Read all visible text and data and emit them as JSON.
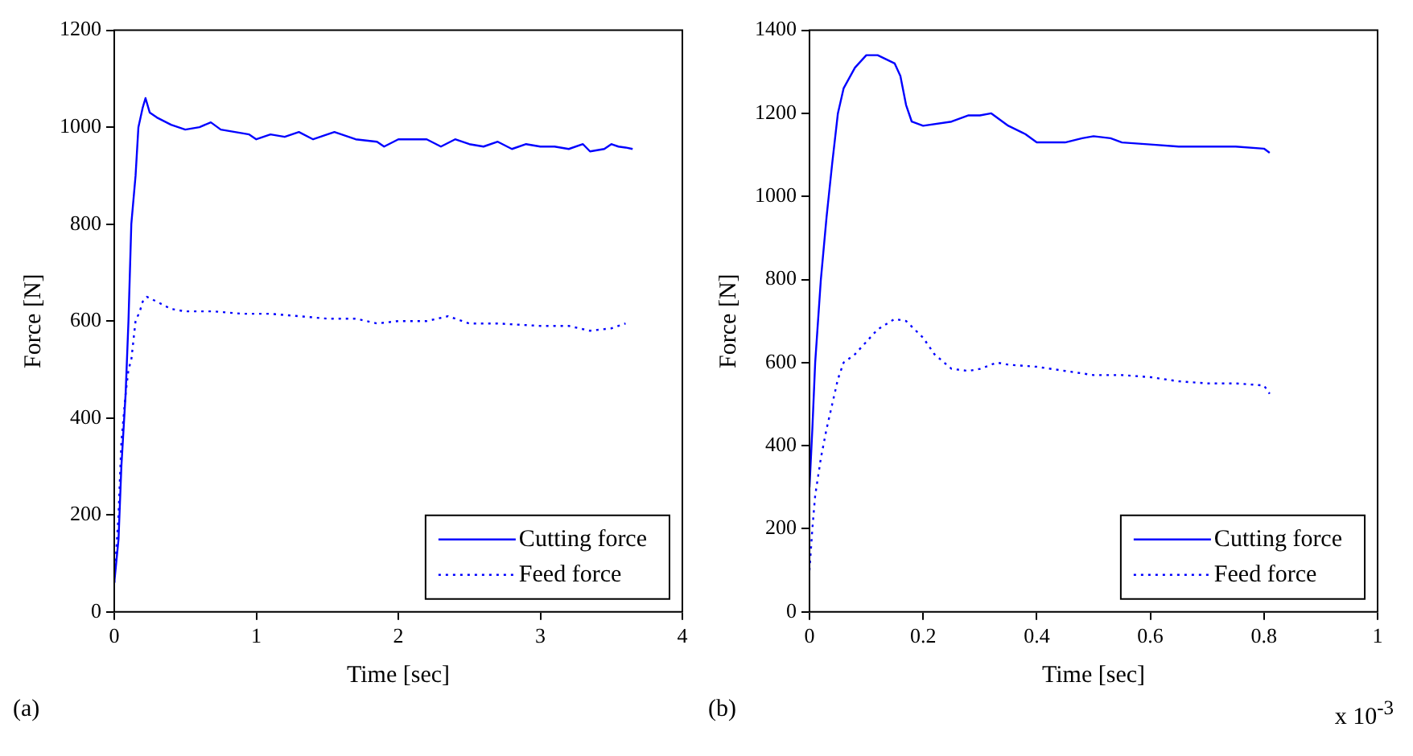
{
  "chart_data": [
    {
      "type": "line",
      "xlabel": "Time [sec]",
      "ylabel": "Force [N]",
      "xlim": [
        0,
        4
      ],
      "xticks": [
        0,
        1,
        2,
        3,
        4
      ],
      "ylim": [
        0,
        1200
      ],
      "yticks": [
        0,
        200,
        400,
        600,
        800,
        1000,
        1200
      ],
      "grid": false,
      "legend": "bottom right",
      "marker": "none",
      "annotations": [
        "(a)"
      ],
      "series": [
        {
          "name": "Cutting force",
          "color": "#0000ff",
          "line_style": "solid",
          "x": [
            0,
            0.03,
            0.05,
            0.08,
            0.1,
            0.12,
            0.15,
            0.17,
            0.2,
            0.22,
            0.25,
            0.3,
            0.4,
            0.5,
            0.6,
            0.68,
            0.75,
            0.85,
            0.95,
            1.0,
            1.1,
            1.2,
            1.3,
            1.4,
            1.5,
            1.55,
            1.7,
            1.85,
            1.9,
            2.0,
            2.2,
            2.3,
            2.4,
            2.5,
            2.6,
            2.7,
            2.8,
            2.9,
            3.0,
            3.1,
            3.2,
            3.3,
            3.35,
            3.45,
            3.5,
            3.55,
            3.6,
            3.65
          ],
          "values": [
            60,
            150,
            300,
            450,
            600,
            800,
            900,
            1000,
            1040,
            1060,
            1030,
            1020,
            1005,
            995,
            1000,
            1010,
            995,
            990,
            985,
            975,
            985,
            980,
            990,
            975,
            985,
            990,
            975,
            970,
            960,
            975,
            975,
            960,
            975,
            965,
            960,
            970,
            955,
            965,
            960,
            960,
            955,
            965,
            950,
            955,
            965,
            960,
            958,
            955
          ]
        },
        {
          "name": "Feed force",
          "color": "#0000ff",
          "line_style": "dotted",
          "x": [
            0,
            0.03,
            0.05,
            0.08,
            0.1,
            0.12,
            0.15,
            0.18,
            0.2,
            0.23,
            0.3,
            0.4,
            0.5,
            0.7,
            0.9,
            1.1,
            1.3,
            1.5,
            1.7,
            1.85,
            2.0,
            2.2,
            2.35,
            2.5,
            2.7,
            3.0,
            3.2,
            3.35,
            3.5,
            3.6
          ],
          "values": [
            60,
            200,
            350,
            450,
            500,
            520,
            600,
            620,
            640,
            650,
            640,
            625,
            620,
            620,
            615,
            615,
            610,
            605,
            605,
            595,
            600,
            600,
            610,
            595,
            595,
            590,
            590,
            580,
            585,
            595
          ]
        }
      ]
    },
    {
      "type": "line",
      "xlabel": "Time [sec]",
      "ylabel": "Force [N]",
      "xlim": [
        0,
        1
      ],
      "xticks": [
        0,
        0.2,
        0.4,
        0.6,
        0.8,
        1
      ],
      "ylim": [
        0,
        1400
      ],
      "yticks": [
        0,
        200,
        400,
        600,
        800,
        1000,
        1200,
        1400
      ],
      "grid": false,
      "legend": "bottom right",
      "marker": "none",
      "annotations": [
        "(b)",
        "x 10$^{-3}$"
      ],
      "series": [
        {
          "name": "Cutting force",
          "color": "#0000ff",
          "line_style": "solid",
          "x": [
            0,
            0.005,
            0.01,
            0.02,
            0.03,
            0.04,
            0.05,
            0.06,
            0.08,
            0.1,
            0.12,
            0.15,
            0.16,
            0.17,
            0.18,
            0.2,
            0.25,
            0.28,
            0.3,
            0.32,
            0.35,
            0.38,
            0.4,
            0.45,
            0.48,
            0.5,
            0.53,
            0.55,
            0.6,
            0.65,
            0.7,
            0.75,
            0.8,
            0.81
          ],
          "values": [
            300,
            440,
            600,
            800,
            950,
            1080,
            1200,
            1260,
            1310,
            1340,
            1340,
            1320,
            1290,
            1220,
            1180,
            1170,
            1180,
            1195,
            1195,
            1200,
            1170,
            1150,
            1130,
            1130,
            1140,
            1145,
            1140,
            1130,
            1125,
            1120,
            1120,
            1120,
            1115,
            1105
          ]
        },
        {
          "name": "Feed force",
          "color": "#0000ff",
          "line_style": "dotted",
          "x": [
            0,
            0.005,
            0.01,
            0.02,
            0.03,
            0.04,
            0.05,
            0.06,
            0.08,
            0.1,
            0.12,
            0.15,
            0.17,
            0.2,
            0.22,
            0.25,
            0.28,
            0.3,
            0.33,
            0.35,
            0.4,
            0.45,
            0.5,
            0.55,
            0.6,
            0.65,
            0.7,
            0.75,
            0.8,
            0.81
          ],
          "values": [
            100,
            200,
            280,
            370,
            440,
            500,
            560,
            600,
            620,
            650,
            680,
            705,
            700,
            660,
            620,
            585,
            580,
            585,
            600,
            595,
            590,
            580,
            570,
            570,
            565,
            555,
            550,
            550,
            545,
            525
          ]
        }
      ]
    }
  ]
}
